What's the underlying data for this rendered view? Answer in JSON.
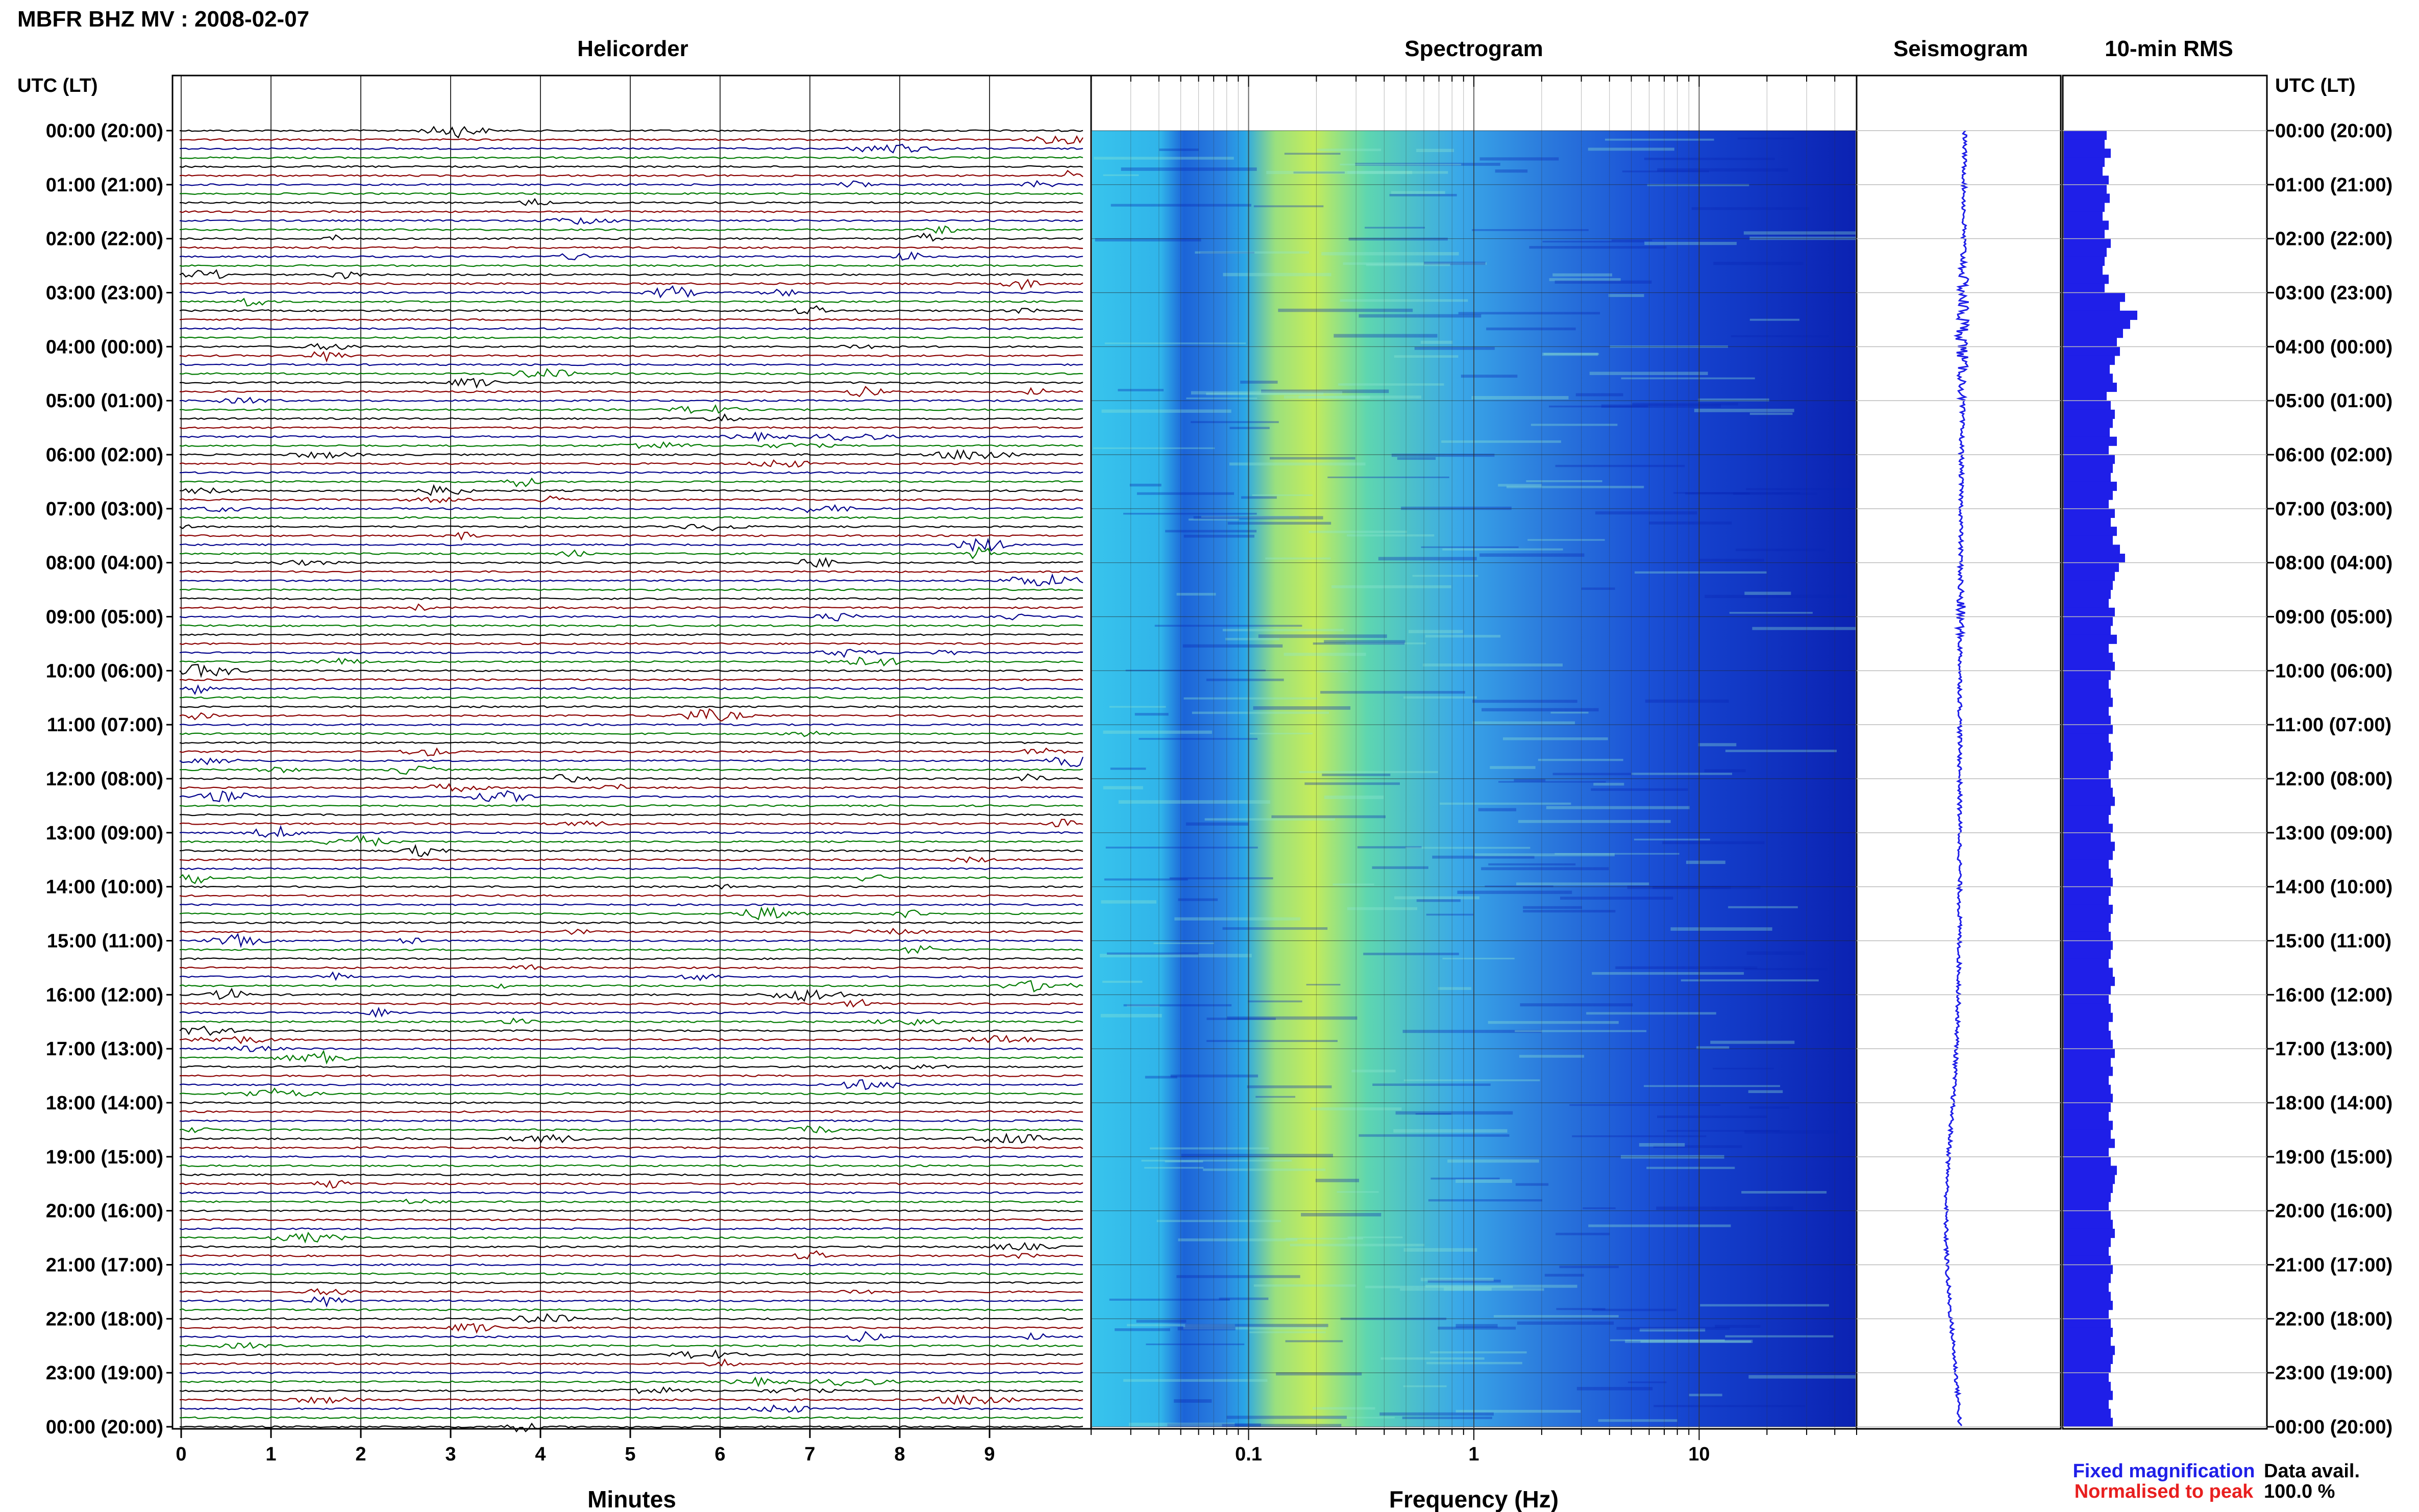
{
  "chart_data": {
    "type": "other",
    "title": "MBFR BHZ MV : 2008-02-07",
    "panels": {
      "helicorder": "Helicorder",
      "spectrogram": "Spectrogram",
      "seismogram": "Seismogram",
      "rms": "10-min RMS"
    },
    "time_axis_label": "UTC (LT)",
    "time_labels": [
      "00:00 (20:00)",
      "01:00 (21:00)",
      "02:00 (22:00)",
      "03:00 (23:00)",
      "04:00 (00:00)",
      "05:00 (01:00)",
      "06:00 (02:00)",
      "07:00 (03:00)",
      "08:00 (04:00)",
      "09:00 (05:00)",
      "10:00 (06:00)",
      "11:00 (07:00)",
      "12:00 (08:00)",
      "13:00 (09:00)",
      "14:00 (10:00)",
      "15:00 (11:00)",
      "16:00 (12:00)",
      "17:00 (13:00)",
      "18:00 (14:00)",
      "19:00 (15:00)",
      "20:00 (16:00)",
      "21:00 (17:00)",
      "22:00 (18:00)",
      "23:00 (19:00)",
      "00:00 (20:00)"
    ],
    "helicorder_xlabel": "Minutes",
    "helicorder_ticks": [
      "0",
      "1",
      "2",
      "3",
      "4",
      "5",
      "6",
      "7",
      "8",
      "9"
    ],
    "helicorder_xlim": [
      0,
      10
    ],
    "helicorder_trace_colors": [
      "#000000",
      "#8b0000",
      "#00008b",
      "#007a00"
    ],
    "spectrogram_xlabel": "Frequency (Hz)",
    "spectrogram_ticks": [
      "0.1",
      "1",
      "10"
    ],
    "spectrogram_xlim": [
      0.02,
      50
    ],
    "spectrogram_xscale": "log",
    "legend": {
      "fixed": "Fixed magnification",
      "normalised": "Normalised to peak",
      "fixed_color": "#1f1fe8",
      "normalised_color": "#e81f1f"
    },
    "data_avail_label": "Data avail.",
    "data_avail_value": "100.0 %",
    "rms_relative": [
      0.42,
      0.4,
      0.46,
      0.4,
      0.38,
      0.44,
      0.42,
      0.45,
      0.4,
      0.38,
      0.44,
      0.4,
      0.46,
      0.42,
      0.4,
      0.38,
      0.44,
      0.4,
      0.6,
      0.55,
      0.72,
      0.65,
      0.58,
      0.52,
      0.55,
      0.5,
      0.45,
      0.48,
      0.52,
      0.42,
      0.46,
      0.5,
      0.48,
      0.45,
      0.52,
      0.44,
      0.5,
      0.48,
      0.46,
      0.52,
      0.48,
      0.44,
      0.5,
      0.46,
      0.52,
      0.48,
      0.55,
      0.6,
      0.54,
      0.5,
      0.48,
      0.46,
      0.44,
      0.5,
      0.48,
      0.46,
      0.52,
      0.44,
      0.48,
      0.5,
      0.46,
      0.44,
      0.46,
      0.48,
      0.44,
      0.46,
      0.48,
      0.44,
      0.46,
      0.48,
      0.46,
      0.44,
      0.46,
      0.48,
      0.5,
      0.46,
      0.44,
      0.48,
      0.46,
      0.5,
      0.48,
      0.44,
      0.46,
      0.48,
      0.46,
      0.44,
      0.48,
      0.46,
      0.44,
      0.46,
      0.48,
      0.46,
      0.44,
      0.48,
      0.5,
      0.46,
      0.44,
      0.46,
      0.48,
      0.44,
      0.46,
      0.48,
      0.5,
      0.46,
      0.48,
      0.44,
      0.46,
      0.48,
      0.46,
      0.44,
      0.48,
      0.46,
      0.5,
      0.44,
      0.46,
      0.52,
      0.5,
      0.48,
      0.46,
      0.44,
      0.46,
      0.48,
      0.5,
      0.46,
      0.44,
      0.46,
      0.48,
      0.46,
      0.44,
      0.46,
      0.48,
      0.44,
      0.46,
      0.48,
      0.46,
      0.5,
      0.48,
      0.46,
      0.44,
      0.46,
      0.48,
      0.44,
      0.46,
      0.48
    ]
  }
}
